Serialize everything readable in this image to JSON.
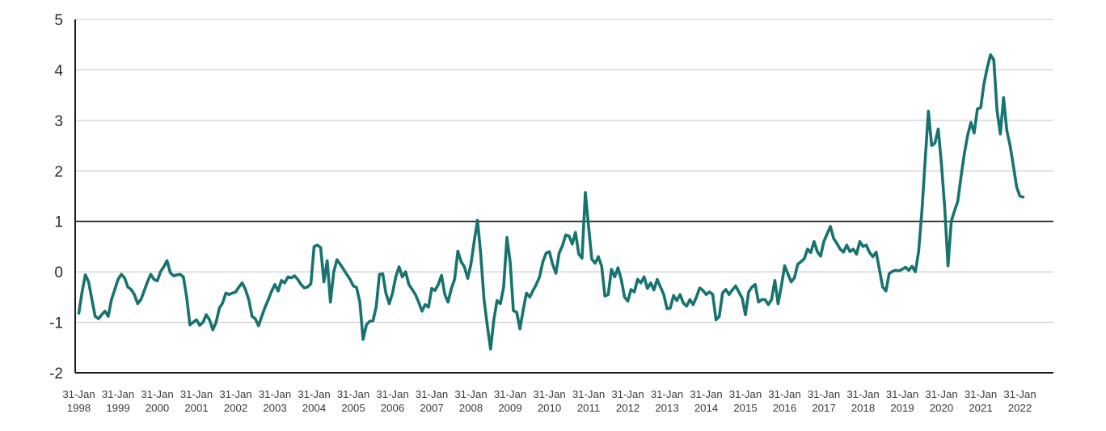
{
  "chart_data": {
    "type": "line",
    "title": "",
    "frequency": "monthly",
    "start_label": "31-Jan-1998",
    "end_label": "28-Feb-2022",
    "x_tick_label_top": "31-Jan",
    "x_tick_years": [
      "1998",
      "1999",
      "2000",
      "2001",
      "2002",
      "2003",
      "2004",
      "2005",
      "2006",
      "2007",
      "2008",
      "2009",
      "2010",
      "2011",
      "2012",
      "2013",
      "2014",
      "2015",
      "2016",
      "2017",
      "2018",
      "2019",
      "2020",
      "2021",
      "2022"
    ],
    "y_tick_labels": [
      "5",
      "4",
      "3",
      "2",
      "1",
      "0",
      "-1",
      "-2"
    ],
    "y_ticks": [
      5,
      4,
      3,
      2,
      1,
      0,
      -1,
      -2
    ],
    "ylim": [
      -2,
      5
    ],
    "reference_line_y": 1,
    "grid": "horizontal-only",
    "legend": "none",
    "line_color": "#16736f",
    "grid_color": "#c9c9c9",
    "axis_color": "#1a1a1a",
    "label_color": "#3a3a3a",
    "values": [
      -0.82,
      -0.4,
      -0.06,
      -0.2,
      -0.55,
      -0.88,
      -0.93,
      -0.85,
      -0.78,
      -0.88,
      -0.55,
      -0.35,
      -0.15,
      -0.05,
      -0.12,
      -0.3,
      -0.35,
      -0.45,
      -0.63,
      -0.55,
      -0.38,
      -0.2,
      -0.05,
      -0.15,
      -0.18,
      0.0,
      0.1,
      0.22,
      -0.02,
      -0.08,
      -0.06,
      -0.05,
      -0.1,
      -0.5,
      -1.05,
      -1.0,
      -0.95,
      -1.06,
      -1.0,
      -0.85,
      -0.95,
      -1.15,
      -1.0,
      -0.72,
      -0.62,
      -0.42,
      -0.45,
      -0.42,
      -0.4,
      -0.3,
      -0.22,
      -0.35,
      -0.55,
      -0.88,
      -0.93,
      -1.07,
      -0.88,
      -0.7,
      -0.55,
      -0.38,
      -0.25,
      -0.38,
      -0.17,
      -0.22,
      -0.1,
      -0.12,
      -0.08,
      -0.15,
      -0.25,
      -0.32,
      -0.3,
      -0.24,
      0.5,
      0.53,
      0.48,
      -0.2,
      0.22,
      -0.6,
      0.0,
      0.24,
      0.15,
      0.05,
      -0.05,
      -0.15,
      -0.28,
      -0.31,
      -0.6,
      -1.34,
      -1.05,
      -0.98,
      -0.97,
      -0.7,
      -0.05,
      -0.04,
      -0.43,
      -0.63,
      -0.42,
      -0.1,
      0.1,
      -0.1,
      0.0,
      -0.25,
      -0.35,
      -0.45,
      -0.6,
      -0.78,
      -0.65,
      -0.7,
      -0.33,
      -0.37,
      -0.25,
      -0.07,
      -0.45,
      -0.6,
      -0.33,
      -0.15,
      0.41,
      0.2,
      0.1,
      -0.13,
      0.15,
      0.6,
      1.02,
      0.35,
      -0.55,
      -1.06,
      -1.53,
      -0.95,
      -0.57,
      -0.63,
      -0.31,
      0.68,
      0.2,
      -0.77,
      -0.8,
      -1.13,
      -0.75,
      -0.42,
      -0.5,
      -0.37,
      -0.25,
      -0.1,
      0.2,
      0.37,
      0.4,
      0.15,
      -0.03,
      0.37,
      0.52,
      0.73,
      0.71,
      0.55,
      0.78,
      0.35,
      0.27,
      1.57,
      0.9,
      0.25,
      0.17,
      0.3,
      0.11,
      -0.48,
      -0.45,
      0.05,
      -0.1,
      0.08,
      -0.15,
      -0.5,
      -0.58,
      -0.35,
      -0.4,
      -0.15,
      -0.22,
      -0.1,
      -0.33,
      -0.22,
      -0.36,
      -0.15,
      -0.3,
      -0.45,
      -0.73,
      -0.72,
      -0.47,
      -0.57,
      -0.45,
      -0.62,
      -0.68,
      -0.55,
      -0.65,
      -0.5,
      -0.32,
      -0.37,
      -0.45,
      -0.4,
      -0.45,
      -0.95,
      -0.88,
      -0.42,
      -0.35,
      -0.45,
      -0.36,
      -0.28,
      -0.4,
      -0.52,
      -0.85,
      -0.4,
      -0.3,
      -0.25,
      -0.6,
      -0.55,
      -0.55,
      -0.65,
      -0.55,
      -0.17,
      -0.63,
      -0.28,
      0.12,
      -0.04,
      -0.2,
      -0.12,
      0.15,
      0.2,
      0.26,
      0.45,
      0.38,
      0.6,
      0.4,
      0.31,
      0.6,
      0.75,
      0.9,
      0.66,
      0.56,
      0.45,
      0.39,
      0.53,
      0.4,
      0.45,
      0.35,
      0.6,
      0.5,
      0.53,
      0.38,
      0.3,
      0.39,
      0.05,
      -0.3,
      -0.38,
      -0.04,
      0.01,
      0.03,
      0.02,
      0.05,
      0.09,
      0.03,
      0.11,
      0.0,
      0.4,
      1.2,
      2.2,
      3.18,
      2.5,
      2.55,
      2.83,
      2.13,
      1.27,
      0.12,
      1.0,
      1.21,
      1.4,
      1.9,
      2.34,
      2.7,
      2.96,
      2.75,
      3.23,
      3.25,
      3.72,
      4.04,
      4.3,
      4.2,
      3.2,
      2.73,
      3.45,
      2.8,
      2.5,
      2.1,
      1.68,
      1.5,
      1.48
    ]
  }
}
